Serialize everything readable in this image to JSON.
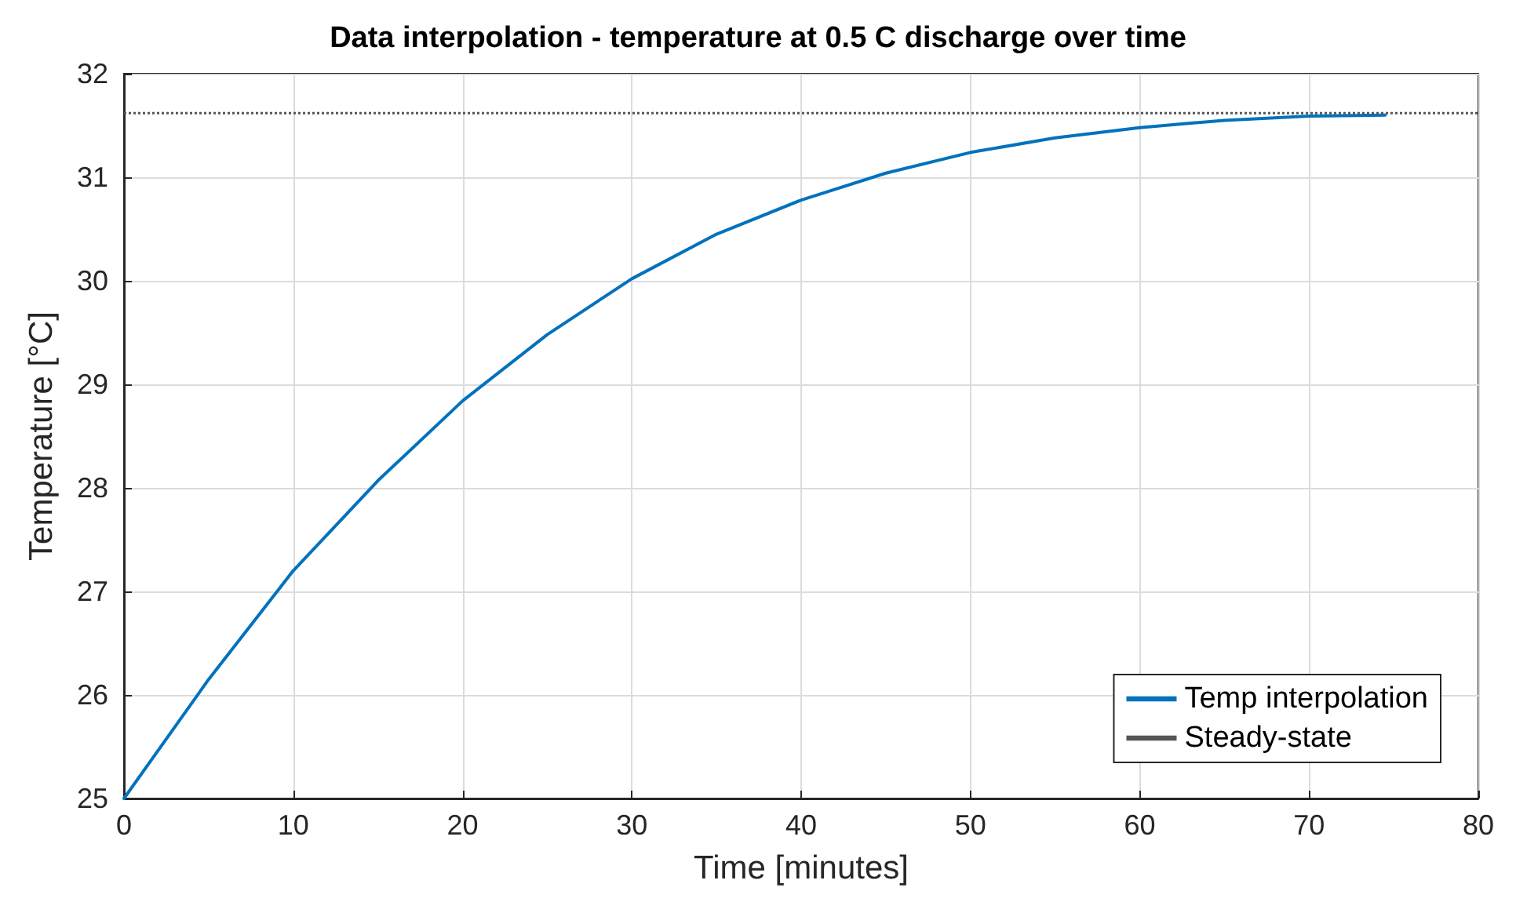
{
  "chart_data": {
    "type": "line",
    "title": "Data interpolation - temperature at 0.5 C discharge over time",
    "xlabel": "Time [minutes]",
    "ylabel": "Temperature [°C]",
    "x": [
      0,
      5,
      10,
      15,
      20,
      25,
      30,
      35,
      40,
      45,
      50,
      55,
      60,
      65,
      70,
      74.5
    ],
    "series": [
      {
        "name": "Temp interpolation",
        "color": "#0072bd",
        "values": [
          25,
          26.15,
          27.2,
          28.07,
          28.84,
          29.48,
          30.02,
          30.45,
          30.78,
          31.04,
          31.24,
          31.38,
          31.48,
          31.55,
          31.59,
          31.6
        ]
      }
    ],
    "ref_lines": [
      {
        "axis": "y",
        "value": 31.62,
        "label": "Steady-state",
        "color": "#555555",
        "line_style": "dotted"
      }
    ],
    "xlim": [
      0,
      80
    ],
    "xticks": [
      0,
      10,
      20,
      30,
      40,
      50,
      60,
      70,
      80
    ],
    "ylim": [
      25,
      32
    ],
    "yticks": [
      25,
      26,
      27,
      28,
      29,
      30,
      31,
      32
    ],
    "grid": true,
    "legend": "bottom right",
    "marker": "none",
    "line_style": "solid"
  }
}
